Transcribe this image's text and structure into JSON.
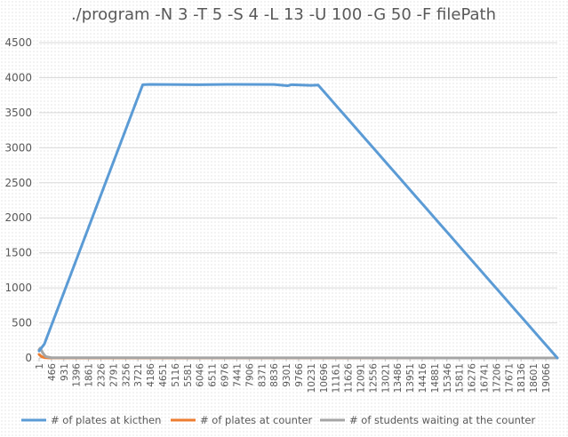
{
  "chart_data": {
    "type": "line",
    "title": "./program -N 3 -T 5 -S 4 -L 13 -U 100 -G 50 -F filePath",
    "xlabel": "",
    "ylabel": "",
    "ylim": [
      0,
      4500
    ],
    "yticks": [
      "0",
      "500",
      "1000",
      "1500",
      "2000",
      "2500",
      "3000",
      "3500",
      "4000",
      "4500"
    ],
    "x_tick_labels": [
      "1",
      "466",
      "931",
      "1396",
      "1861",
      "2326",
      "2791",
      "3256",
      "3721",
      "4186",
      "4651",
      "5116",
      "5581",
      "6046",
      "6511",
      "6976",
      "7441",
      "7906",
      "8371",
      "8836",
      "9301",
      "9766",
      "10231",
      "10696",
      "11161",
      "11626",
      "12091",
      "12556",
      "13021",
      "13486",
      "13951",
      "14416",
      "14881",
      "15346",
      "15811",
      "16276",
      "16741",
      "17206",
      "17671",
      "18136",
      "18601",
      "19066"
    ],
    "xlim": [
      1,
      19500
    ],
    "grid": true,
    "legend_position": "bottom",
    "series": [
      {
        "name": "# of plates at kicthen",
        "color": "#5b9bd5",
        "points": [
          [
            1,
            100
          ],
          [
            200,
            200
          ],
          [
            3900,
            3900
          ],
          [
            4186,
            3905
          ],
          [
            6000,
            3900
          ],
          [
            7441,
            3905
          ],
          [
            8836,
            3902
          ],
          [
            9350,
            3885
          ],
          [
            9500,
            3900
          ],
          [
            10231,
            3890
          ],
          [
            10500,
            3895
          ],
          [
            19500,
            0
          ]
        ]
      },
      {
        "name": "# of plates at counter",
        "color": "#ed7d31",
        "points": [
          [
            1,
            50
          ],
          [
            60,
            30
          ],
          [
            120,
            15
          ],
          [
            200,
            5
          ],
          [
            400,
            0
          ],
          [
            19500,
            0
          ]
        ]
      },
      {
        "name": "# of students waiting at the counter",
        "color": "#a5a5a5",
        "points": [
          [
            1,
            120
          ],
          [
            40,
            140
          ],
          [
            100,
            100
          ],
          [
            160,
            60
          ],
          [
            250,
            20
          ],
          [
            466,
            3
          ],
          [
            19500,
            0
          ]
        ]
      }
    ]
  }
}
